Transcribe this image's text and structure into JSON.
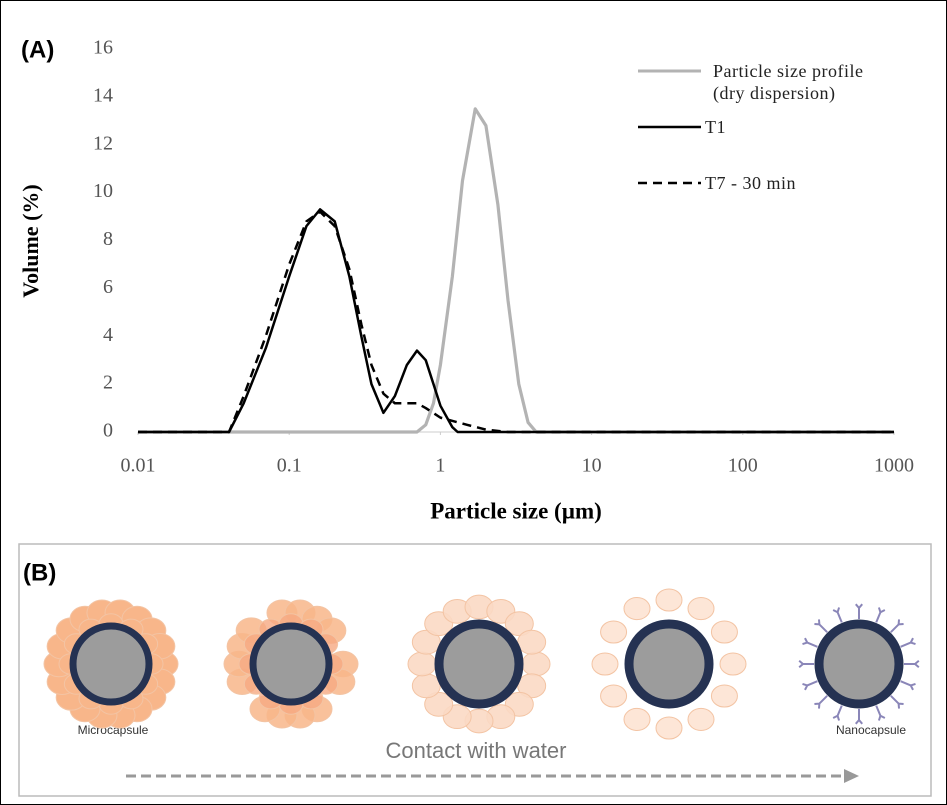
{
  "chart_data": {
    "type": "line",
    "panel_label": "(A)",
    "xlabel": "Particle size (µm)",
    "ylabel": "Volume (%)",
    "xscale": "log",
    "xlim": [
      0.01,
      1000
    ],
    "xticks": [
      0.01,
      0.1,
      1,
      10,
      100,
      1000
    ],
    "ylim": [
      0,
      16
    ],
    "yticks": [
      0,
      2,
      4,
      6,
      8,
      10,
      12,
      14,
      16
    ],
    "grid": false,
    "legend": "upper right",
    "series": [
      {
        "name": "Particle size profile (dry dispersion)",
        "color": "#b3b3b3",
        "linestyle": "solid",
        "x": [
          0.01,
          0.7,
          0.8,
          0.9,
          1.0,
          1.2,
          1.4,
          1.7,
          2.0,
          2.4,
          2.8,
          3.3,
          3.8,
          4.3,
          1000
        ],
        "values": [
          0,
          0,
          0.3,
          1.2,
          2.8,
          6.5,
          10.5,
          13.5,
          12.8,
          9.5,
          5.5,
          2,
          0.4,
          0,
          0
        ]
      },
      {
        "name": "T1",
        "color": "#000000",
        "linestyle": "solid",
        "x": [
          0.01,
          0.04,
          0.05,
          0.07,
          0.1,
          0.13,
          0.16,
          0.2,
          0.25,
          0.3,
          0.35,
          0.42,
          0.5,
          0.6,
          0.7,
          0.8,
          0.9,
          1.0,
          1.2,
          1.3,
          1000
        ],
        "values": [
          0,
          0,
          1.2,
          3.5,
          6.5,
          8.6,
          9.3,
          8.8,
          6.5,
          4,
          2,
          0.8,
          1.5,
          2.8,
          3.4,
          3,
          2,
          1.1,
          0.2,
          0,
          0
        ]
      },
      {
        "name": "T7 - 30 min",
        "color": "#000000",
        "linestyle": "dashed",
        "x": [
          0.01,
          0.04,
          0.05,
          0.07,
          0.1,
          0.13,
          0.16,
          0.2,
          0.25,
          0.3,
          0.35,
          0.42,
          0.5,
          0.6,
          0.7,
          0.8,
          1.0,
          1.5,
          2.0,
          2.8,
          1000
        ],
        "values": [
          0,
          0,
          1.5,
          4,
          7,
          8.8,
          9.2,
          8.6,
          6.8,
          4.5,
          2.8,
          1.6,
          1.2,
          1.2,
          1.2,
          1.0,
          0.6,
          0.3,
          0.1,
          0,
          0
        ]
      }
    ]
  },
  "diagram": {
    "panel_label": "(B)",
    "start_label": "Microcapsule",
    "end_label": "Nanocapsule",
    "arrow_label": "Contact with water"
  }
}
